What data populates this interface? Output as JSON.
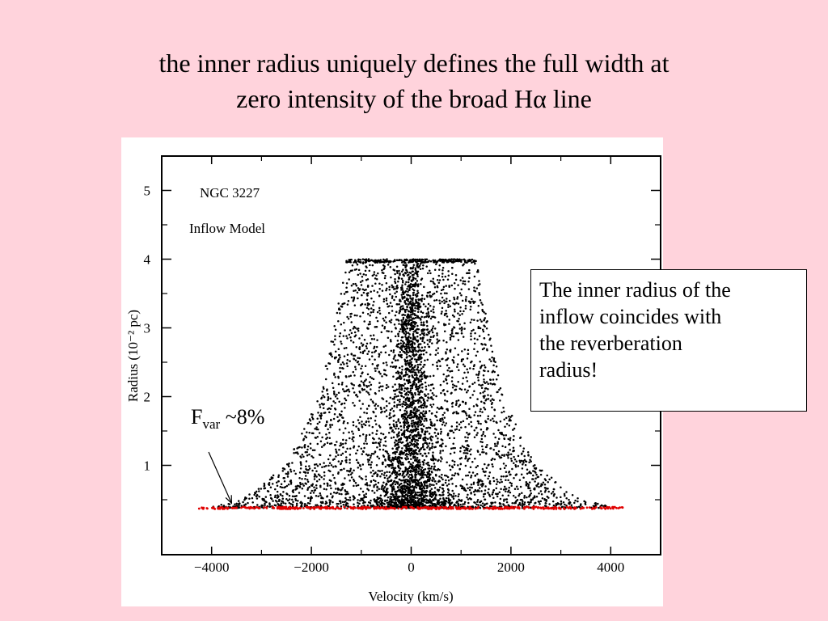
{
  "title": {
    "line1": "the inner radius uniquely defines the full width at",
    "line2": "zero intensity of the broad Hα line"
  },
  "callout": {
    "lines": [
      "The inner radius of the",
      "inflow coincides with",
      "the reverberation",
      "radius!"
    ]
  },
  "chart_data": {
    "type": "scatter",
    "title": "NGC 3227",
    "subtitle": "Inflow Model",
    "xlabel": "Velocity (km/s)",
    "ylabel": "Radius (10⁻² pc)",
    "xlim": [
      -5000,
      5000
    ],
    "ylim": [
      -0.3,
      5.5
    ],
    "xticks": [
      -4000,
      -2000,
      0,
      2000,
      4000
    ],
    "xtick_labels": [
      "−4000",
      "−2000",
      "0",
      "2000",
      "4000"
    ],
    "yticks": [
      1,
      2,
      3,
      4,
      5
    ],
    "ytick_labels": [
      "1",
      "2",
      "3",
      "4",
      "5"
    ],
    "series": [
      {
        "color": "#000000",
        "description_envelope_radius": [
          0.4,
          0.5,
          1.0,
          2.0,
          3.0,
          4.0,
          4.0
        ],
        "description_envelope_halfwidth_kms": [
          4000,
          3400,
          2500,
          1850,
          1550,
          1300,
          1300
        ],
        "inner_radius": 0.38,
        "outer_radius": 4.0
      },
      {
        "color": "#e00000",
        "radius": 0.38,
        "velocity_range": [
          -4250,
          4250
        ]
      }
    ],
    "annotation": {
      "text_main": "F",
      "text_sub": "var",
      "text_tail": " ~8%",
      "arrow_target": [
        -3600,
        0.45
      ]
    },
    "grid": false
  }
}
